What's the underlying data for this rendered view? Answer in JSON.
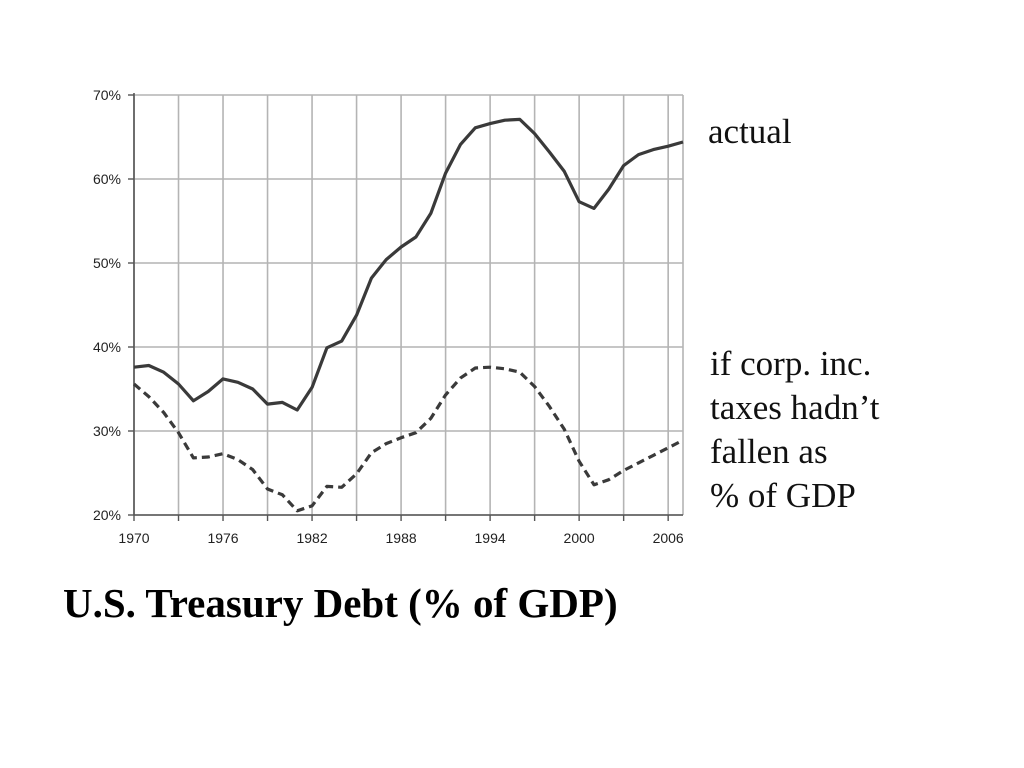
{
  "chart_data": {
    "type": "line",
    "title": "U.S. Treasury Debt (% of GDP)",
    "xlabel": "",
    "ylabel": "",
    "xlim": [
      1970,
      2007
    ],
    "ylim": [
      20,
      70
    ],
    "grid": true,
    "y_ticks": [
      20,
      30,
      40,
      50,
      60,
      70
    ],
    "y_tick_labels": [
      "20%",
      "30%",
      "40%",
      "50%",
      "60%",
      "70%"
    ],
    "x_ticks": [
      1970,
      1976,
      1982,
      1988,
      1994,
      2000,
      2006
    ],
    "x_tick_labels": [
      "1970",
      "1976",
      "1982",
      "1988",
      "1994",
      "2000",
      "2006"
    ],
    "x_gridlines": [
      1970,
      1973,
      1976,
      1979,
      1982,
      1985,
      1988,
      1991,
      1994,
      1997,
      2000,
      2003,
      2006
    ],
    "series": [
      {
        "name": "actual",
        "style": "solid",
        "color": "#3a3a3a",
        "x": [
          1970,
          1971,
          1972,
          1973,
          1974,
          1975,
          1976,
          1977,
          1978,
          1979,
          1980,
          1981,
          1982,
          1983,
          1984,
          1985,
          1986,
          1987,
          1988,
          1989,
          1990,
          1991,
          1992,
          1993,
          1994,
          1995,
          1996,
          1997,
          1998,
          1999,
          2000,
          2001,
          2002,
          2003,
          2004,
          2005,
          2006,
          2007
        ],
        "values": [
          37.6,
          37.8,
          37.0,
          35.6,
          33.6,
          34.7,
          36.2,
          35.8,
          35.0,
          33.2,
          33.4,
          32.5,
          35.2,
          39.9,
          40.7,
          43.8,
          48.2,
          50.4,
          51.9,
          53.1,
          55.9,
          60.7,
          64.1,
          66.1,
          66.6,
          67.0,
          67.1,
          65.4,
          63.2,
          60.9,
          57.3,
          56.5,
          58.8,
          61.6,
          62.9,
          63.5,
          63.9,
          64.4
        ]
      },
      {
        "name": "if corp. inc. taxes hadn’t fallen as % of GDP",
        "style": "dashed",
        "color": "#3a3a3a",
        "x": [
          1970,
          1971,
          1972,
          1973,
          1974,
          1975,
          1976,
          1977,
          1978,
          1979,
          1980,
          1981,
          1982,
          1983,
          1984,
          1985,
          1986,
          1987,
          1988,
          1989,
          1990,
          1991,
          1992,
          1993,
          1994,
          1995,
          1996,
          1997,
          1998,
          1999,
          2000,
          2001,
          2002,
          2003,
          2004,
          2005,
          2006,
          2007
        ],
        "values": [
          35.6,
          34.1,
          32.2,
          29.8,
          26.8,
          26.9,
          27.3,
          26.6,
          25.4,
          23.1,
          22.4,
          20.5,
          21.1,
          23.4,
          23.3,
          24.9,
          27.4,
          28.5,
          29.2,
          29.8,
          31.5,
          34.3,
          36.3,
          37.5,
          37.6,
          37.4,
          37.0,
          35.3,
          32.9,
          30.2,
          26.4,
          23.6,
          24.2,
          25.3,
          26.2,
          27.1,
          28.0,
          28.9
        ]
      }
    ],
    "annotations": {
      "actual": [
        "actual"
      ],
      "counterfactual": [
        "if corp. inc.",
        "taxes hadn’t",
        "fallen as",
        "% of GDP"
      ]
    },
    "colors": {
      "grid": "#b4b4b4",
      "axis": "#555555",
      "line": "#3a3a3a"
    }
  }
}
